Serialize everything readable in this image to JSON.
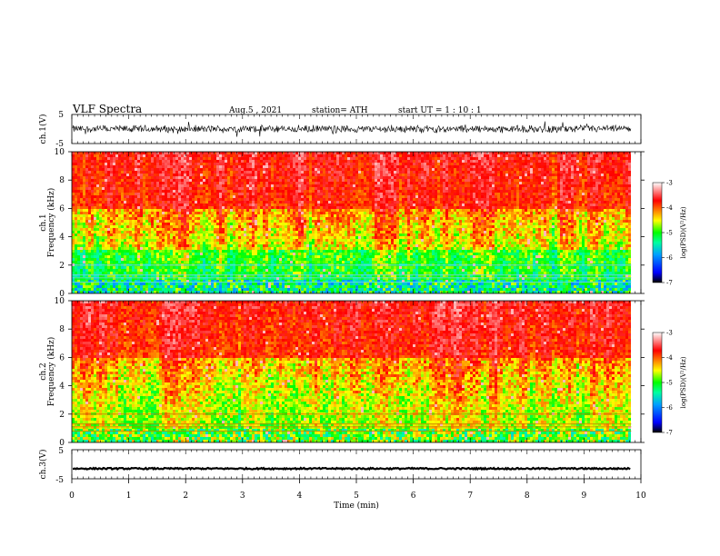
{
  "header": {
    "title": "VLF  Spectra",
    "date": "Aug.5  , 2021",
    "station": "station= ATH",
    "start": "start  UT  =   1  : 10 : 1"
  },
  "chart_data": [
    {
      "type": "line",
      "name": "ch1-waveform",
      "ylabel": "ch.1(V)",
      "ylim": [
        -5,
        5
      ],
      "ytick_labels": [
        "5",
        "-5"
      ],
      "xlim": [
        0,
        10
      ],
      "x_data_end": 9.83,
      "signal_amplitude_v": 1.3,
      "color": "#000000"
    },
    {
      "type": "heatmap",
      "name": "ch1-spectrogram",
      "ylabel": "ch.1\nFrequency (kHz)",
      "ylim": [
        0,
        10
      ],
      "yticks": [
        0,
        2,
        4,
        6,
        8,
        10
      ],
      "xlim": [
        0,
        10
      ],
      "x_data_end": 9.83,
      "colorbar": {
        "label": "log(PSD)(V²/Hz)",
        "ticks": [
          -3,
          -4,
          -5,
          -6,
          -7
        ],
        "range": [
          -7,
          -3
        ]
      }
    },
    {
      "type": "heatmap",
      "name": "ch2-spectrogram",
      "ylabel": "ch.2\nFrequency (kHz)",
      "ylim": [
        0,
        10
      ],
      "yticks": [
        0,
        2,
        4,
        6,
        8,
        10
      ],
      "xlim": [
        0,
        10
      ],
      "x_data_end": 9.83,
      "colorbar": {
        "label": "log(PSD)(V²/Hz)",
        "ticks": [
          -3,
          -4,
          -5,
          -6,
          -7
        ],
        "range": [
          -7,
          -3
        ]
      }
    },
    {
      "type": "line",
      "name": "ch3-waveform",
      "ylabel": "ch.3(V)",
      "ylim": [
        -5,
        5
      ],
      "ytick_labels": [
        "5",
        "-5"
      ],
      "xlim": [
        0,
        10
      ],
      "x_data_end": 9.83,
      "signal_level_v": -1.5,
      "color": "#000000"
    }
  ],
  "xaxis": {
    "label": "Time  (min)",
    "ticks": [
      0,
      1,
      2,
      3,
      4,
      5,
      6,
      7,
      8,
      9,
      10
    ]
  },
  "colormap": [
    "#000000",
    "#0000ff",
    "#00a0ff",
    "#00ffa0",
    "#00ff00",
    "#ffff00",
    "#ff8000",
    "#ff0000",
    "#ffffff"
  ]
}
